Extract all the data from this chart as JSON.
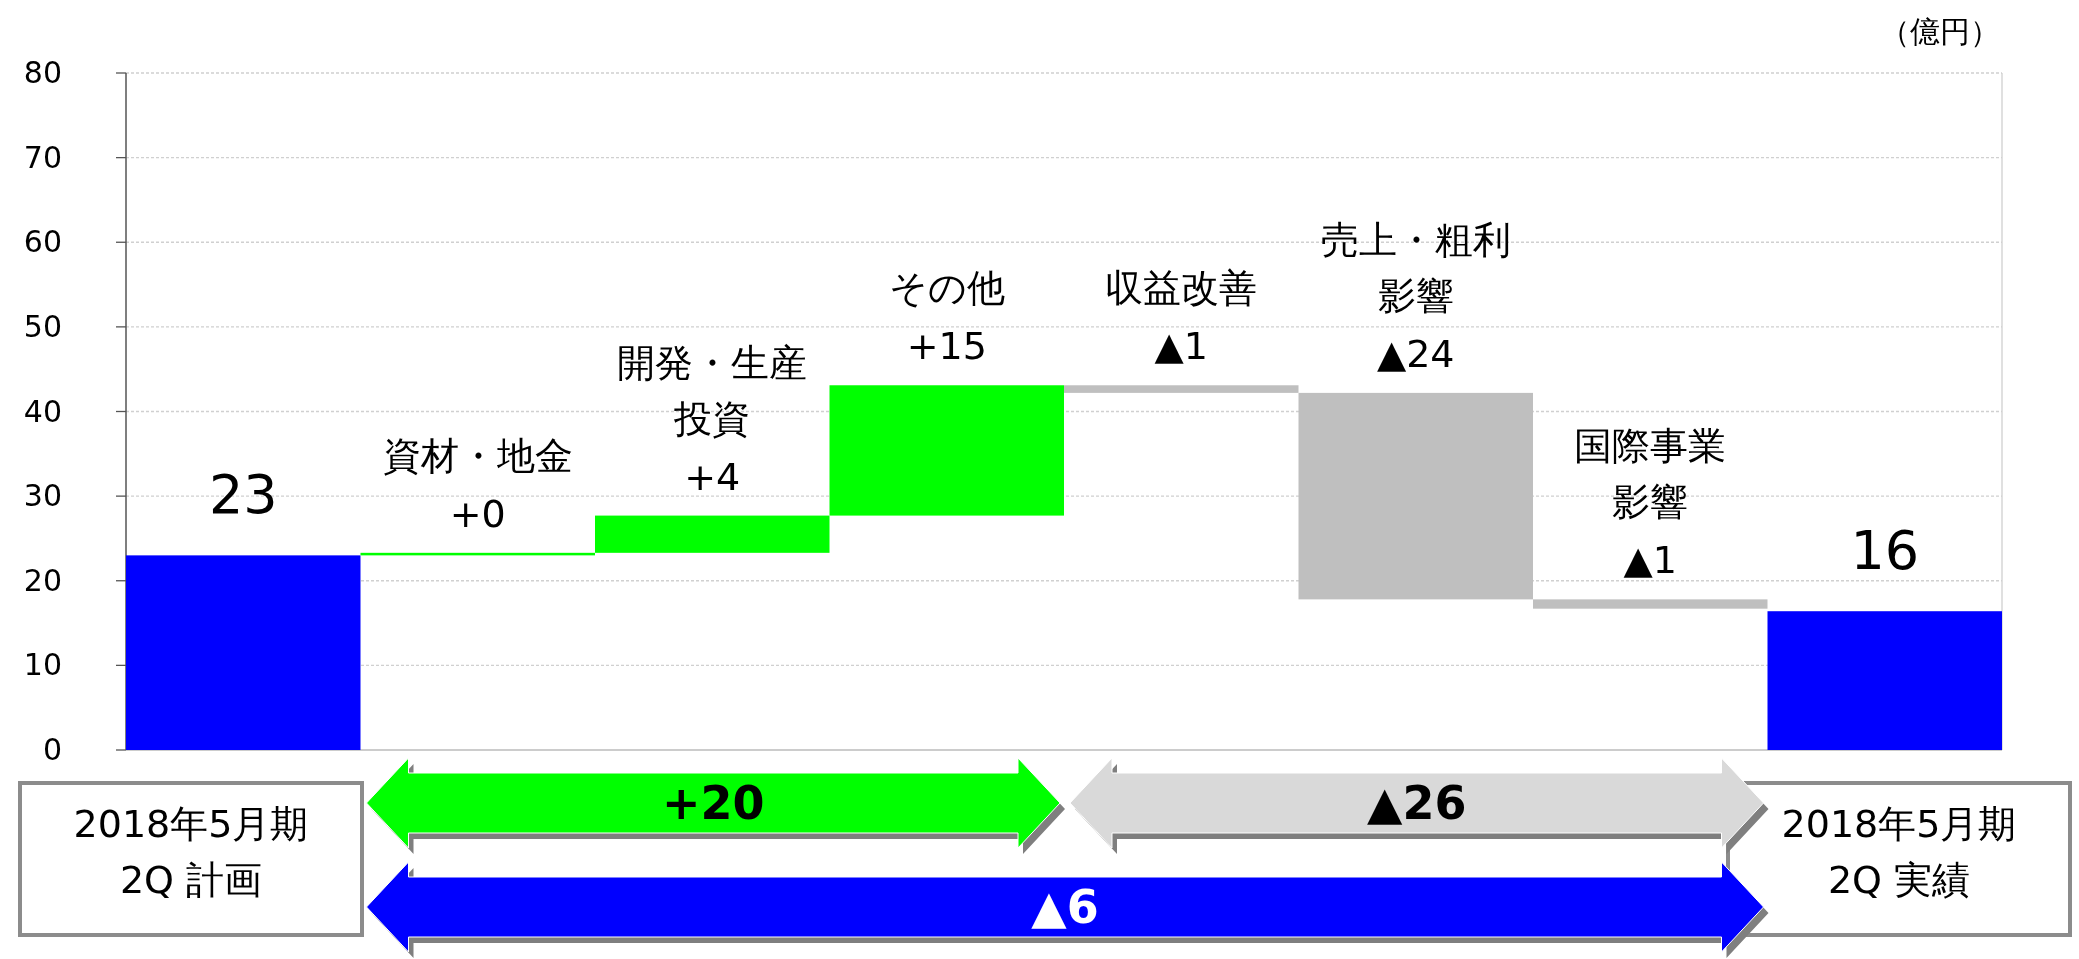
{
  "chart_data": {
    "type": "bar",
    "ylabel": "（億円）",
    "categories": [
      "2018年5月期\n2Q 計画",
      "資材・地金",
      "開発・生産投資",
      "その他",
      "収益改善",
      "売上・粗利影響",
      "国際事業影響",
      "2018年5月期\n2Q 実績"
    ],
    "base": [
      0,
      23,
      23.3,
      27.7,
      43.1,
      42.2,
      17.8,
      0
    ],
    "values": [
      23,
      0.3,
      4.4,
      15.4,
      -0.9,
      -24.4,
      -1.1,
      16.4
    ],
    "colors": [
      "#0000ff",
      "#00ff00",
      "#00ff00",
      "#00ff00",
      "#bfbfbf",
      "#bfbfbf",
      "#bfbfbf",
      "#0000ff"
    ],
    "value_labels": [
      "23",
      "+0",
      "+4",
      "+15",
      "▲1",
      "▲24",
      "▲1",
      "16"
    ],
    "annotations": [
      "+20",
      "▲26",
      "▲6"
    ],
    "ylim": [
      0,
      80
    ],
    "yticks": [
      0,
      10,
      20,
      30,
      40,
      50,
      60,
      70,
      80
    ],
    "grid": "y"
  }
}
